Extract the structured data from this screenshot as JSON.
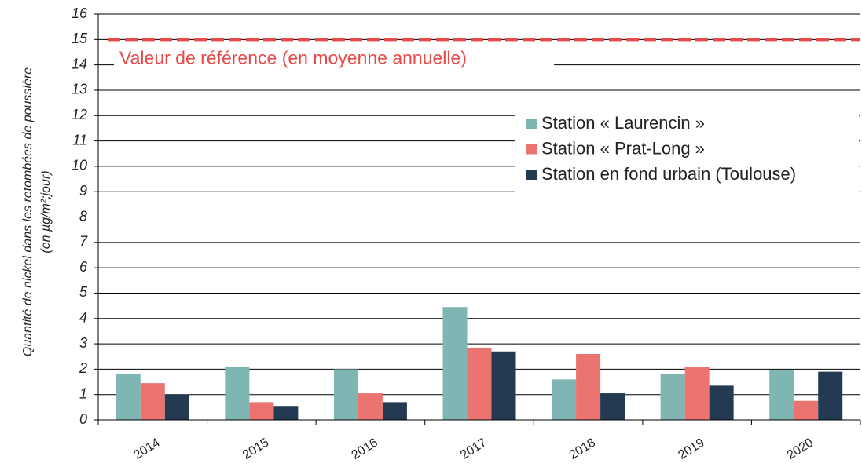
{
  "chart_data": {
    "type": "bar",
    "y_label": [
      "Quantité de nickel dans les retombées de poussière",
      "(en µg/m²;jour)"
    ],
    "categories": [
      "2014",
      "2015",
      "2016",
      "2017",
      "2018",
      "2019",
      "2020"
    ],
    "series": [
      {
        "name": "Station « Laurencin »",
        "color": "#7fb5b2",
        "values": [
          1.8,
          2.1,
          2.0,
          4.45,
          1.6,
          1.8,
          1.95
        ]
      },
      {
        "name": "Station « Prat-Long »",
        "color": "#ec7470",
        "values": [
          1.45,
          0.7,
          1.05,
          2.85,
          2.6,
          2.1,
          0.75
        ]
      },
      {
        "name": "Station en fond urbain (Toulouse)",
        "color": "#243a52",
        "values": [
          1.0,
          0.55,
          0.7,
          2.7,
          1.05,
          1.35,
          1.9
        ]
      }
    ],
    "reference": {
      "value": 15,
      "label": "Valeur de référence (en moyenne annuelle)",
      "color": "#e84a4a"
    },
    "ylim": [
      0,
      16
    ],
    "yticks": [
      0,
      1,
      2,
      3,
      4,
      5,
      6,
      7,
      8,
      9,
      10,
      11,
      12,
      13,
      14,
      15,
      16
    ],
    "grid": true,
    "legend": "upper right"
  }
}
